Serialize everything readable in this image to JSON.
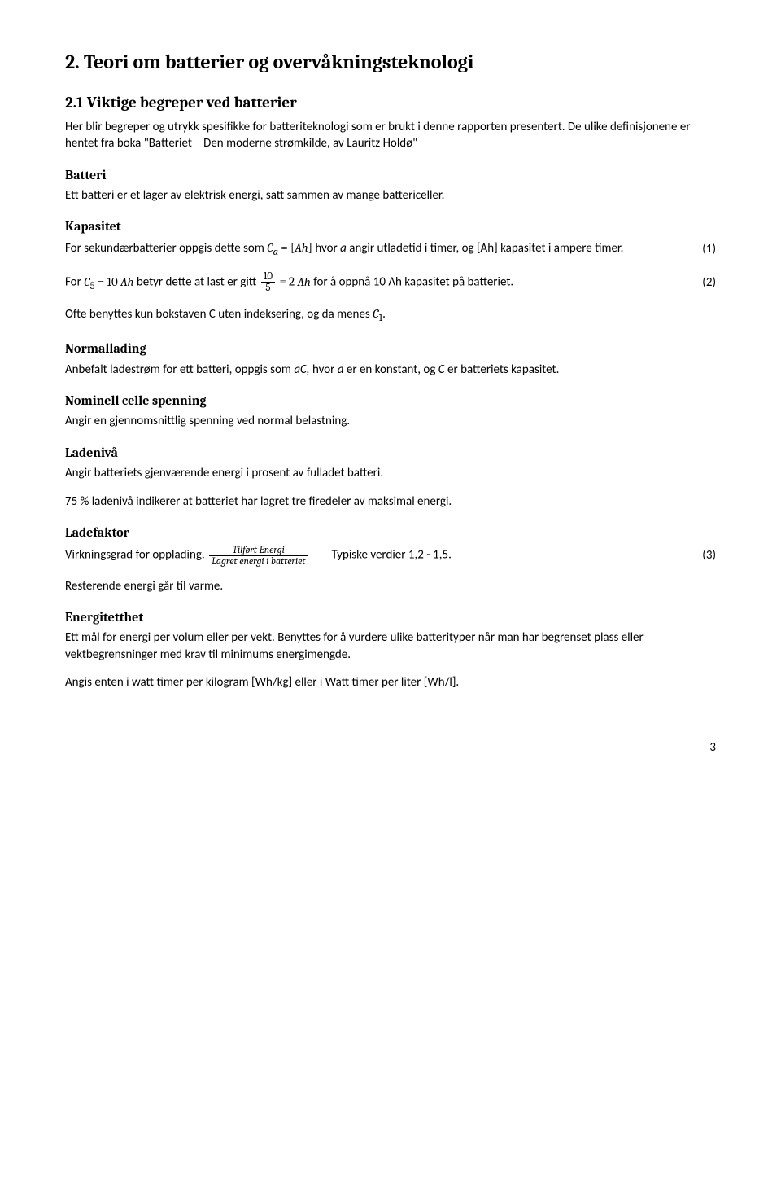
{
  "title": "2. Teori om batterier og overvåkningsteknologi",
  "section_2_1": {
    "heading": "2.1 Viktige begreper ved batterier",
    "intro": "Her blir begreper og utrykk spesifikke for batteriteknologi som er brukt i denne rapporten presentert. De ulike definisjonene er hentet fra boka \"Batteriet – Den moderne strømkilde, av Lauritz Holdø\""
  },
  "batteri": {
    "heading": "Batteri",
    "text": "Ett batteri er et lager av elektrisk energi, satt sammen av mange battericeller."
  },
  "kapasitet": {
    "heading": "Kapasitet",
    "line1_pre": "For sekundærbatterier oppgis dette som ",
    "line1_math_html": "<span class='math'><i>C</i><sub><i>a</i></sub> = [<i>Ah</i>]</span>",
    "line1_mid": " hvor ",
    "line1_a": "a",
    "line1_post": " angir utladetid i timer, og [Ah] kapasitet i ampere timer.",
    "eq1_num": "(1)",
    "line2_pre": "For ",
    "line2_math1_html": "<span class='math'><i>C</i><sub>5</sub> = 10 <i>Ah</i></span>",
    "line2_mid1": " betyr dette at last er gitt ",
    "line2_frac_num": "10",
    "line2_frac_den": "5",
    "line2_mid2": " = 2 ",
    "line2_ah_html": "<span class='math'><i>Ah</i></span>",
    "line2_post": " for å oppnå 10 Ah kapasitet på batteriet.",
    "eq2_num": "(2)",
    "line3_pre": "Ofte benyttes kun bokstaven C uten indeksering, og da menes ",
    "line3_math_html": "<span class='math'><i>C</i><sub>1</sub></span>",
    "line3_post": "."
  },
  "normallading": {
    "heading": "Normallading",
    "text_pre": "Anbefalt ladestrøm for ett batteri, oppgis som ",
    "text_ac": "aC,",
    "text_mid": " hvor ",
    "text_a": "a",
    "text_mid2": " er en konstant, og ",
    "text_c": "C",
    "text_post": " er batteriets kapasitet."
  },
  "nominell": {
    "heading": "Nominell celle spenning",
    "text": "Angir en gjennomsnittlig spenning ved normal belastning."
  },
  "ladeniva": {
    "heading": "Ladenivå",
    "line1": "Angir batteriets gjenværende energi i prosent av fulladet batteri.",
    "line2": "75 % ladenivå indikerer at batteriet har lagret tre firedeler av maksimal energi."
  },
  "ladefaktor": {
    "heading": "Ladefaktor",
    "pre": "Virkningsgrad for opplading. ",
    "frac_num": "Tilført Energi",
    "frac_den": "Lagret energi i batteriet",
    "mid": "        Typiske verdier 1,2 - 1,5.",
    "eq3_num": "(3)",
    "line2": "Resterende energi går til varme."
  },
  "energitetthet": {
    "heading": "Energitetthet",
    "line1": "Ett mål for energi per volum eller per vekt. Benyttes for å vurdere ulike batterityper når man har begrenset plass eller vektbegrensninger med krav til minimums energimengde.",
    "line2": "Angis enten i watt timer per kilogram [Wh/kg] eller i Watt timer per liter [Wh/l]."
  },
  "page_number": "3"
}
